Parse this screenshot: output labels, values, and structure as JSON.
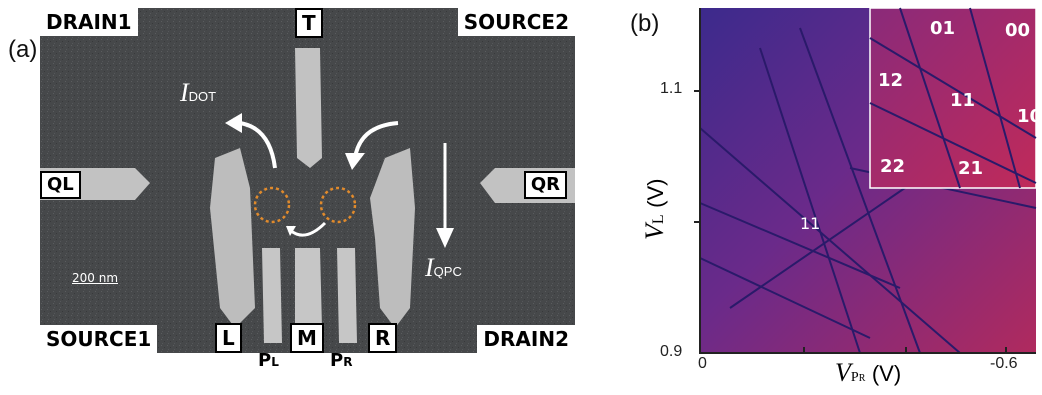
{
  "panel_a": {
    "label": "(a)",
    "contacts": {
      "drain1": "DRAIN1",
      "source2": "SOURCE2",
      "source1": "SOURCE1",
      "drain2": "DRAIN2"
    },
    "gates": {
      "t": "T",
      "ql": "QL",
      "qr": "QR",
      "l": "L",
      "m": "M",
      "r": "R",
      "pl_main": "P",
      "pl_sub": "L",
      "pr_main": "P",
      "pr_sub": "R"
    },
    "currents": {
      "dot_main": "I",
      "dot_sub": "DOT",
      "qpc_main": "I",
      "qpc_sub": "QPC"
    },
    "scale_bar": "200 nm",
    "colors": {
      "background": "#46484a",
      "gate": "#c8c8c8",
      "dot_circle": "#e08a2c",
      "arrow": "#ffffff"
    }
  },
  "panel_b": {
    "label": "(b)",
    "x_axis": {
      "title_main": "V",
      "title_sub": "P",
      "title_subsub": "R",
      "title_unit": "(V)",
      "ticks": [
        "0",
        "-0.6"
      ]
    },
    "y_axis": {
      "title_main": "V",
      "title_sub": "L",
      "title_unit": "(V)",
      "ticks": [
        "1.1",
        "0.9"
      ]
    },
    "main_labels": {
      "charge_11": "11"
    },
    "inset_labels": {
      "l01": "01",
      "l00": "00",
      "l12": "12",
      "l11": "11",
      "l10": "10",
      "l22": "22",
      "l21": "21"
    },
    "colors": {
      "low": "#4a2a8e",
      "high": "#b02a6a",
      "line": "#2a1a6a"
    }
  }
}
